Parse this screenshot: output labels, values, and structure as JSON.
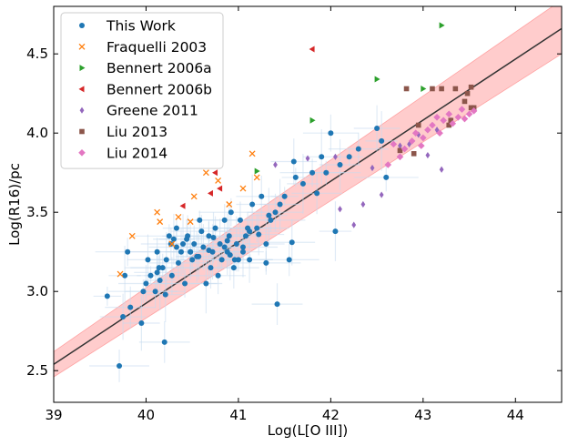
{
  "chart_data": {
    "type": "scatter",
    "xlabel": "Log(L[O III])",
    "ylabel": "Log(R16)/pc",
    "xlim": [
      39,
      44.5
    ],
    "ylim": [
      2.3,
      4.8
    ],
    "xticks": [
      {
        "value": 39,
        "label": "39"
      },
      {
        "value": 40,
        "label": "40"
      },
      {
        "value": 41,
        "label": "41"
      },
      {
        "value": 42,
        "label": "42"
      },
      {
        "value": 43,
        "label": "43"
      },
      {
        "value": 44,
        "label": "44"
      }
    ],
    "yticks": [
      {
        "value": 2.5,
        "label": "2.5"
      },
      {
        "value": 3.0,
        "label": "3.0"
      },
      {
        "value": 3.5,
        "label": "3.5"
      },
      {
        "value": 4.0,
        "label": "4.0"
      },
      {
        "value": 4.5,
        "label": "4.5"
      }
    ],
    "grid": false,
    "legend_position": "top-left",
    "fit": {
      "color": "#333333",
      "band_color": "#ff9999",
      "line": [
        [
          39,
          2.54
        ],
        [
          44.5,
          4.66
        ]
      ],
      "band_upper": [
        [
          39,
          2.62
        ],
        [
          44.5,
          4.84
        ]
      ],
      "band_lower": [
        [
          39,
          2.46
        ],
        [
          44.5,
          4.5
        ]
      ]
    },
    "series": [
      {
        "name": "This Work",
        "marker": "circle",
        "color": "#1f77b4",
        "errcolor": "#c6dbef",
        "x": [
          39.58,
          39.71,
          39.75,
          39.77,
          39.8,
          39.83,
          39.95,
          39.97,
          40.0,
          40.02,
          40.05,
          40.1,
          40.12,
          40.15,
          40.18,
          40.2,
          40.22,
          40.25,
          40.28,
          40.3,
          40.33,
          40.35,
          40.38,
          40.4,
          40.42,
          40.45,
          40.48,
          40.5,
          40.52,
          40.55,
          40.58,
          40.6,
          40.62,
          40.65,
          40.68,
          40.7,
          40.72,
          40.75,
          40.78,
          40.8,
          40.82,
          40.85,
          40.88,
          40.9,
          40.92,
          40.95,
          40.98,
          41.0,
          41.02,
          41.05,
          41.08,
          41.1,
          41.12,
          41.15,
          41.2,
          41.25,
          41.3,
          41.35,
          41.4,
          41.45,
          41.5,
          41.55,
          41.6,
          41.7,
          41.8,
          41.85,
          41.9,
          41.95,
          42.0,
          42.1,
          42.2,
          42.3,
          42.5,
          42.55,
          42.6,
          41.42,
          40.21,
          41.05,
          40.44,
          40.91,
          41.62,
          40.27,
          40.57,
          40.68,
          40.85,
          41.22,
          41.33,
          40.14,
          40.33,
          40.73,
          40.96,
          41.12,
          41.58,
          42.05,
          40.12,
          40.48,
          40.88,
          41.3
        ],
        "y": [
          2.97,
          2.53,
          2.84,
          3.1,
          3.25,
          2.9,
          2.8,
          3.0,
          3.05,
          3.2,
          3.1,
          3.0,
          3.12,
          3.07,
          3.15,
          2.68,
          3.2,
          3.35,
          3.1,
          3.33,
          3.4,
          3.18,
          3.25,
          3.3,
          3.05,
          3.35,
          3.25,
          3.2,
          3.3,
          3.22,
          3.45,
          3.38,
          3.28,
          3.05,
          3.35,
          3.15,
          3.25,
          3.4,
          3.1,
          3.3,
          3.2,
          3.45,
          3.25,
          3.35,
          3.5,
          3.15,
          3.3,
          3.2,
          3.45,
          3.25,
          3.35,
          3.4,
          3.2,
          3.55,
          3.4,
          3.6,
          3.3,
          3.45,
          3.5,
          3.55,
          3.6,
          3.2,
          3.82,
          3.68,
          3.75,
          3.62,
          3.85,
          3.75,
          4.0,
          3.8,
          3.85,
          3.9,
          4.03,
          3.95,
          3.72,
          2.92,
          2.98,
          3.28,
          3.33,
          3.23,
          3.72,
          3.3,
          3.22,
          3.26,
          3.28,
          3.36,
          3.48,
          3.15,
          3.28,
          3.34,
          3.2,
          3.38,
          3.31,
          3.38,
          3.25,
          3.25,
          3.32,
          3.18
        ]
      },
      {
        "name": "Fraquelli 2003",
        "marker": "x",
        "color": "#ff7f0e",
        "x": [
          39.72,
          39.85,
          40.15,
          40.28,
          40.35,
          40.48,
          40.52,
          40.65,
          40.78,
          40.9,
          41.05,
          41.15,
          41.2,
          40.12
        ],
        "y": [
          3.11,
          3.35,
          3.44,
          3.3,
          3.47,
          3.44,
          3.6,
          3.75,
          3.7,
          3.55,
          3.65,
          3.87,
          3.72,
          3.5
        ]
      },
      {
        "name": "Bennert 2006a",
        "marker": "triangle-right",
        "color": "#2ca02c",
        "x": [
          41.2,
          41.8,
          42.5,
          43.0,
          43.2
        ],
        "y": [
          3.76,
          4.08,
          4.34,
          4.28,
          4.68
        ]
      },
      {
        "name": "Bennert 2006b",
        "marker": "triangle-left",
        "color": "#d62728",
        "x": [
          40.4,
          40.7,
          40.75,
          40.8,
          41.8
        ],
        "y": [
          3.54,
          3.62,
          3.75,
          3.65,
          4.53
        ]
      },
      {
        "name": "Greene 2011",
        "marker": "diamond-thin",
        "color": "#9467bd",
        "x": [
          41.4,
          41.75,
          42.05,
          42.1,
          42.25,
          42.35,
          42.45,
          42.55,
          42.75,
          42.85,
          42.95,
          43.05,
          43.15,
          43.2,
          43.3
        ],
        "y": [
          3.8,
          3.84,
          3.85,
          3.52,
          3.42,
          3.55,
          3.78,
          3.61,
          3.92,
          3.93,
          3.99,
          3.86,
          4.02,
          3.77,
          4.08
        ]
      },
      {
        "name": "Liu 2013",
        "marker": "square",
        "color": "#8c564b",
        "x": [
          42.75,
          42.82,
          42.9,
          42.95,
          43.1,
          43.2,
          43.28,
          43.3,
          43.35,
          43.45,
          43.48,
          43.52,
          43.55,
          43.52
        ],
        "y": [
          3.89,
          4.28,
          3.87,
          4.05,
          4.28,
          4.28,
          4.05,
          4.08,
          4.28,
          4.2,
          4.25,
          4.16,
          4.16,
          4.29
        ]
      },
      {
        "name": "Liu 2014",
        "marker": "diamond",
        "color": "#e377c2",
        "x": [
          42.62,
          42.75,
          42.8,
          42.88,
          42.92,
          42.98,
          43.0,
          43.05,
          43.1,
          43.15,
          43.18,
          43.22,
          43.28,
          43.32,
          43.38,
          43.42,
          43.45,
          43.5,
          43.55,
          42.68
        ],
        "y": [
          3.8,
          3.85,
          3.9,
          3.95,
          4.0,
          3.92,
          3.97,
          4.02,
          4.05,
          4.1,
          4.0,
          4.08,
          4.12,
          4.06,
          4.1,
          4.15,
          4.09,
          4.12,
          4.14,
          3.93
        ]
      }
    ]
  }
}
